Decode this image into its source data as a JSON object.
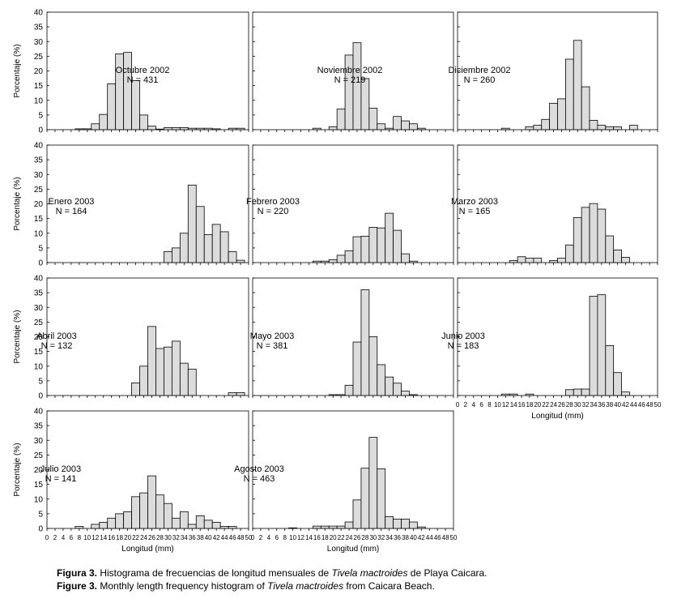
{
  "figure": {
    "y_axis_label": "Porcentaje (%)",
    "x_axis_label": "Longitud (mm)",
    "y_ticks": [
      "0",
      "5",
      "10",
      "15",
      "20",
      "25",
      "30",
      "35",
      "40"
    ],
    "x_ticks": [
      "0",
      "2",
      "4",
      "6",
      "8",
      "10",
      "12",
      "14",
      "16",
      "18",
      "20",
      "22",
      "24",
      "26",
      "28",
      "30",
      "32",
      "34",
      "36",
      "38",
      "40",
      "42",
      "44",
      "46",
      "48",
      "50"
    ],
    "caption_es": {
      "label": "Figura 3.",
      "text_before": " Histograma de frecuencias de longitud mensuales de ",
      "species": "Tivela mactroides",
      "text_after": " de Playa Caicara."
    },
    "caption_en": {
      "label": "Figure 3.",
      "text_before": " Monthly length frequency histogram of ",
      "species": "Tivela mactroides",
      "text_after": " from Caicara Beach."
    }
  },
  "colors": {
    "bar_fill": "#dcdcdc",
    "bar_stroke": "#000000",
    "axis": "#000000",
    "background": "#ffffff"
  },
  "chart_data": [
    {
      "type": "bar",
      "title": "Octubre 2002",
      "n_label": "N = 431",
      "xlabel": "",
      "ylabel": "Porcentaje (%)",
      "xlim": [
        0,
        50
      ],
      "ylim": [
        0,
        40
      ],
      "bins": [
        8,
        10,
        12,
        14,
        16,
        18,
        20,
        22,
        24,
        26,
        28,
        30,
        32,
        34,
        36,
        38,
        40,
        42,
        44,
        46,
        48
      ],
      "values": [
        0.3,
        0.3,
        2.0,
        5.2,
        15.6,
        25.8,
        26.3,
        16.7,
        5.0,
        1.2,
        0.2,
        0.7,
        0.7,
        0.7,
        0.5,
        0.5,
        0.5,
        0.3,
        0,
        0.5,
        0.5
      ]
    },
    {
      "type": "bar",
      "title": "Noviembre 2002",
      "n_label": "N = 219",
      "xlabel": "",
      "ylabel": "",
      "xlim": [
        0,
        50
      ],
      "ylim": [
        0,
        40
      ],
      "bins": [
        16,
        18,
        20,
        22,
        24,
        26,
        28,
        30,
        32,
        34,
        36,
        38,
        40,
        42
      ],
      "values": [
        0.5,
        0,
        1.0,
        7.0,
        25.4,
        29.6,
        17.4,
        7.3,
        2.0,
        0.5,
        4.5,
        3.0,
        2.0,
        0.5
      ]
    },
    {
      "type": "bar",
      "title": "Diciembre 2002",
      "n_label": "N = 260",
      "xlabel": "",
      "ylabel": "",
      "xlim": [
        0,
        50
      ],
      "ylim": [
        0,
        40
      ],
      "bins": [
        12,
        14,
        16,
        18,
        20,
        22,
        24,
        26,
        28,
        30,
        32,
        34,
        36,
        38,
        40,
        42,
        44
      ],
      "values": [
        0.5,
        0,
        0,
        1.0,
        1.5,
        3.5,
        9.0,
        10.5,
        24.0,
        30.4,
        14.6,
        3.2,
        1.5,
        1.0,
        1.0,
        0,
        1.5
      ]
    },
    {
      "type": "bar",
      "title": "Enero 2003",
      "n_label": "N = 164",
      "xlabel": "",
      "ylabel": "Porcentaje (%)",
      "xlim": [
        0,
        50
      ],
      "ylim": [
        0,
        40
      ],
      "bins": [
        30,
        32,
        34,
        36,
        38,
        40,
        42,
        44,
        46,
        48
      ],
      "values": [
        3.7,
        5.0,
        10.0,
        26.4,
        19.1,
        9.5,
        13.0,
        10.5,
        3.7,
        0.8
      ]
    },
    {
      "type": "bar",
      "title": "Febrero 2003",
      "n_label": "N = 220",
      "xlabel": "",
      "ylabel": "",
      "xlim": [
        0,
        50
      ],
      "ylim": [
        0,
        40
      ],
      "bins": [
        16,
        18,
        20,
        22,
        24,
        26,
        28,
        30,
        32,
        34,
        36,
        38,
        40
      ],
      "values": [
        0.5,
        0.5,
        1.0,
        2.5,
        4.0,
        8.8,
        9.0,
        12.0,
        11.8,
        16.8,
        11.0,
        3.0,
        0.5
      ]
    },
    {
      "type": "bar",
      "title": "Marzo 2003",
      "n_label": "N = 165",
      "xlabel": "",
      "ylabel": "",
      "xlim": [
        0,
        50
      ],
      "ylim": [
        0,
        40
      ],
      "bins": [
        14,
        16,
        18,
        20,
        22,
        24,
        26,
        28,
        30,
        32,
        34,
        36,
        38,
        40,
        42
      ],
      "values": [
        0.7,
        2.0,
        1.5,
        1.5,
        0,
        0.7,
        1.5,
        6.0,
        15.3,
        18.8,
        20.1,
        18.2,
        9.1,
        4.3,
        1.8
      ]
    },
    {
      "type": "bar",
      "title": "Abril 2003",
      "n_label": "N = 132",
      "xlabel": "",
      "ylabel": "Porcentaje (%)",
      "xlim": [
        0,
        50
      ],
      "ylim": [
        0,
        40
      ],
      "bins": [
        22,
        24,
        26,
        28,
        30,
        32,
        34,
        36,
        38,
        40,
        42,
        44,
        46,
        48
      ],
      "values": [
        4.3,
        10.0,
        23.5,
        16.0,
        16.5,
        18.5,
        11.0,
        9.0,
        0,
        0,
        0,
        0,
        1.0,
        1.0
      ]
    },
    {
      "type": "bar",
      "title": "Mayo 2003",
      "n_label": "N = 381",
      "xlabel": "",
      "ylabel": "",
      "xlim": [
        0,
        50
      ],
      "ylim": [
        0,
        40
      ],
      "bins": [
        20,
        22,
        24,
        26,
        28,
        30,
        32,
        34,
        36,
        38,
        40,
        42
      ],
      "values": [
        0.3,
        0.3,
        3.5,
        18.2,
        36.0,
        20.0,
        10.5,
        6.3,
        4.2,
        1.5,
        0.3,
        0
      ]
    },
    {
      "type": "bar",
      "title": "Junio 2003",
      "n_label": "N = 183",
      "xlabel": "Longitud (mm)",
      "ylabel": "",
      "xlim": [
        0,
        50
      ],
      "ylim": [
        0,
        40
      ],
      "bins": [
        12,
        14,
        16,
        18,
        20,
        22,
        24,
        26,
        28,
        30,
        32,
        34,
        36,
        38,
        40,
        42
      ],
      "values": [
        0.5,
        0.5,
        0,
        0.5,
        0,
        0,
        0,
        0,
        2.0,
        2.2,
        2.2,
        33.8,
        34.3,
        17.0,
        7.8,
        1.2
      ]
    },
    {
      "type": "bar",
      "title": "Julio 2003",
      "n_label": "N = 141",
      "xlabel": "Longitud (mm)",
      "ylabel": "Porcentaje (%)",
      "xlim": [
        0,
        50
      ],
      "ylim": [
        0,
        40
      ],
      "bins": [
        8,
        10,
        12,
        14,
        16,
        18,
        20,
        22,
        24,
        26,
        28,
        30,
        32,
        34,
        36,
        38,
        40,
        42,
        44,
        46
      ],
      "values": [
        0.7,
        0,
        1.4,
        2.1,
        3.5,
        5.0,
        5.7,
        10.8,
        12.1,
        17.9,
        11.4,
        8.5,
        3.5,
        5.7,
        1.4,
        4.3,
        2.8,
        2.1,
        0.7,
        0.7
      ]
    },
    {
      "type": "bar",
      "title": "Agosto 2003",
      "n_label": "N = 463",
      "xlabel": "Longitud (mm)",
      "ylabel": "",
      "xlim": [
        0,
        50
      ],
      "ylim": [
        0,
        40
      ],
      "bins": [
        10,
        12,
        14,
        16,
        18,
        20,
        22,
        24,
        26,
        28,
        30,
        32,
        34,
        36,
        38,
        40,
        42,
        44,
        46
      ],
      "values": [
        0.2,
        0,
        0,
        0.8,
        0.8,
        0.8,
        0.8,
        2.2,
        9.7,
        20.5,
        31.0,
        20.3,
        4.0,
        3.2,
        3.2,
        2.2,
        0.5,
        0,
        0
      ]
    }
  ]
}
